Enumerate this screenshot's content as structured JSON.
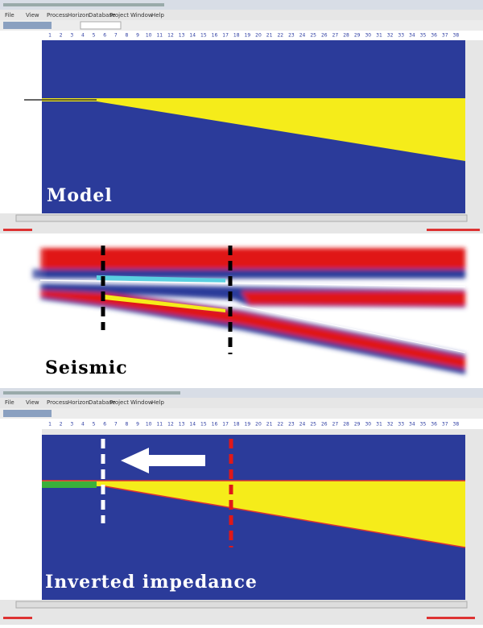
{
  "panels": {
    "model": {
      "label": "Model"
    },
    "seismic": {
      "label": "Seismic"
    },
    "inverted": {
      "label": "Inverted impedance"
    }
  },
  "menu": [
    "File",
    "View",
    "Process",
    "Horizon",
    "Database",
    "Project",
    "Window",
    "Help"
  ],
  "trace_numbers": [
    1,
    2,
    3,
    4,
    5,
    6,
    7,
    8,
    9,
    10,
    11,
    12,
    13,
    14,
    15,
    16,
    17,
    18,
    19,
    20,
    21,
    22,
    23,
    24,
    25,
    26,
    27,
    28,
    29,
    30,
    31,
    32,
    33,
    34,
    35,
    36,
    37,
    38
  ]
}
